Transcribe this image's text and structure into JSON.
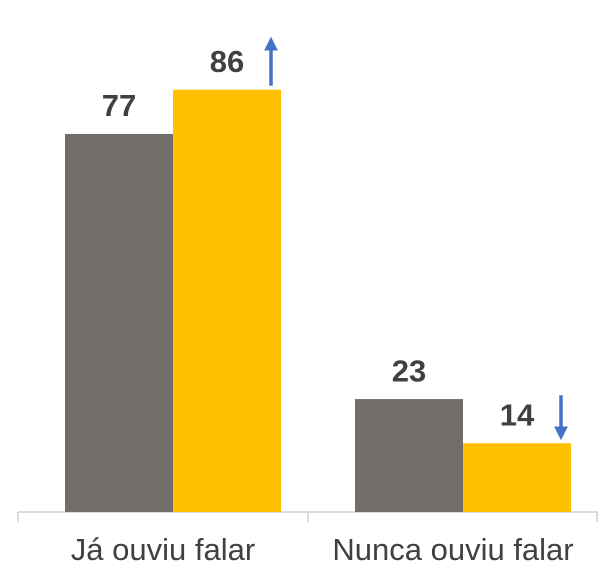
{
  "chart_data": {
    "type": "bar",
    "categories": [
      "Já ouviu falar",
      "Nunca ouviu falar"
    ],
    "series": [
      {
        "color": "#726d6a",
        "values": [
          77,
          23
        ]
      },
      {
        "color": "#ffc000",
        "values": [
          86,
          14
        ]
      }
    ],
    "ylim": [
      0,
      100
    ]
  }
}
